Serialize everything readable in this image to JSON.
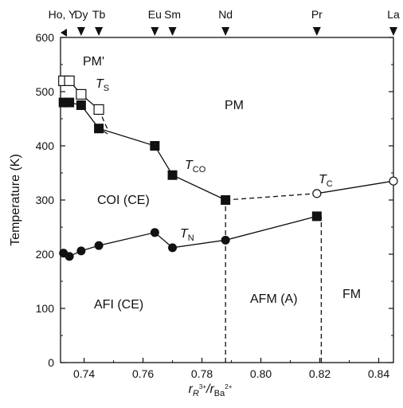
{
  "chart_data": {
    "type": "scatter",
    "title": "",
    "xlabel": {
      "main": "r",
      "sub1": "R",
      "sup1": "3+",
      "slash": "/r",
      "sub2": "Ba",
      "sup2": "2+"
    },
    "ylabel": "Temperature (K)",
    "xlim": [
      0.732,
      0.845
    ],
    "ylim": [
      0,
      600
    ],
    "x_ticks": [
      0.74,
      0.76,
      0.78,
      0.8,
      0.82,
      0.84
    ],
    "x_tick_labels": [
      "0.74",
      "0.76",
      "0.78",
      "0.80",
      "0.82",
      "0.84"
    ],
    "y_ticks": [
      0,
      100,
      200,
      300,
      400,
      500,
      600
    ],
    "y_tick_labels": [
      "0",
      "100",
      "200",
      "300",
      "400",
      "500",
      "600"
    ],
    "grid": false,
    "top_axis": [
      {
        "label": "Ho, Y",
        "x": 0.732
      },
      {
        "label": "Dy",
        "x": 0.739
      },
      {
        "label": "Tb",
        "x": 0.745
      },
      {
        "label": "Eu",
        "x": 0.764
      },
      {
        "label": "Sm",
        "x": 0.77
      },
      {
        "label": "Nd",
        "x": 0.788
      },
      {
        "label": "Pr",
        "x": 0.819
      },
      {
        "label": "La",
        "x": 0.845
      }
    ],
    "series": [
      {
        "marker": "open-square",
        "points": [
          [
            0.733,
            520
          ],
          [
            0.735,
            520
          ],
          [
            0.739,
            495
          ],
          [
            0.745,
            467
          ]
        ]
      },
      {
        "marker": "filled-square",
        "points": [
          [
            0.733,
            480
          ],
          [
            0.735,
            480
          ],
          [
            0.739,
            475
          ],
          [
            0.745,
            432
          ],
          [
            0.764,
            400
          ],
          [
            0.77,
            346
          ],
          [
            0.788,
            300
          ],
          [
            0.819,
            270
          ]
        ]
      },
      {
        "marker": "open-circle",
        "points": [
          [
            0.819,
            312
          ],
          [
            0.845,
            335
          ]
        ]
      },
      {
        "marker": "filled-circle",
        "points": [
          [
            0.733,
            202
          ],
          [
            0.735,
            196
          ],
          [
            0.739,
            206
          ],
          [
            0.745,
            216
          ],
          [
            0.764,
            240
          ],
          [
            0.77,
            212
          ],
          [
            0.788,
            226
          ],
          [
            0.819,
            270
          ]
        ]
      }
    ],
    "curves": {
      "pm_prime_solid": [
        [
          0.733,
          520
        ],
        [
          0.735,
          520
        ],
        [
          0.739,
          495
        ],
        [
          0.745,
          467
        ]
      ],
      "ts_dashed": [
        [
          0.745,
          467
        ],
        [
          0.748,
          430
        ]
      ],
      "tco_solid": [
        [
          0.733,
          480
        ],
        [
          0.735,
          480
        ],
        [
          0.739,
          475
        ],
        [
          0.745,
          432
        ],
        [
          0.764,
          400
        ],
        [
          0.77,
          346
        ],
        [
          0.788,
          300
        ]
      ],
      "tco_link_solid": [
        [
          0.748,
          422
        ],
        [
          0.745,
          432
        ]
      ],
      "tc_dashed": [
        [
          0.788,
          300
        ],
        [
          0.819,
          312
        ]
      ],
      "tc_solid": [
        [
          0.819,
          312
        ],
        [
          0.845,
          335
        ]
      ],
      "tn_solid": [
        [
          0.733,
          202
        ],
        [
          0.735,
          196
        ],
        [
          0.739,
          206
        ],
        [
          0.745,
          216
        ],
        [
          0.764,
          240
        ],
        [
          0.77,
          212
        ],
        [
          0.788,
          226
        ],
        [
          0.819,
          270
        ]
      ],
      "vertical_dashed": [
        [
          [
            0.788,
            0
          ],
          [
            0.788,
            300
          ]
        ],
        [
          [
            0.8205,
            0
          ],
          [
            0.8205,
            270
          ]
        ]
      ]
    },
    "annotations": {
      "pm_prime": "PM'",
      "ts": {
        "main": "T",
        "sub": "S"
      },
      "pm": "PM",
      "tco": {
        "main": "T",
        "sub": "CO"
      },
      "tc": {
        "main": "T",
        "sub": "C"
      },
      "coi": "COI (CE)",
      "tn": {
        "main": "T",
        "sub": "N"
      },
      "afi": "AFI (CE)",
      "afm": "AFM (A)",
      "fm": "FM"
    }
  }
}
